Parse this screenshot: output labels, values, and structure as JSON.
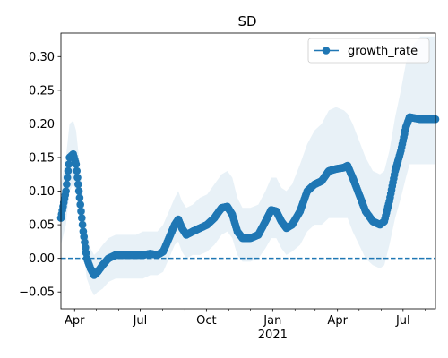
{
  "chart_data": {
    "type": "line",
    "title": "SD",
    "xlabel": "",
    "ylabel": "",
    "ylim": [
      -0.075,
      0.335
    ],
    "xlim": [
      "2020-03-13",
      "2021-08-15"
    ],
    "yticks": [
      -0.05,
      0.0,
      0.05,
      0.1,
      0.15,
      0.2,
      0.25,
      0.3
    ],
    "ytick_labels": [
      "−0.05",
      "0.00",
      "0.05",
      "0.10",
      "0.15",
      "0.20",
      "0.25",
      "0.30"
    ],
    "xticks": [
      {
        "date": "2020-04-01",
        "label": "Apr",
        "sub": ""
      },
      {
        "date": "2020-07-01",
        "label": "Jul",
        "sub": ""
      },
      {
        "date": "2020-10-01",
        "label": "Oct",
        "sub": ""
      },
      {
        "date": "2021-01-01",
        "label": "Jan",
        "sub": "2021"
      },
      {
        "date": "2021-04-01",
        "label": "Apr",
        "sub": ""
      },
      {
        "date": "2021-07-01",
        "label": "Jul",
        "sub": ""
      }
    ],
    "minor_ticks": [
      "2020-05-01",
      "2020-06-01",
      "2020-08-01",
      "2020-09-01",
      "2020-11-01",
      "2020-12-01",
      "2021-02-01",
      "2021-03-01",
      "2021-05-01",
      "2021-06-01",
      "2021-08-01"
    ],
    "grid": false,
    "legend_position": "top-right",
    "reference_line": {
      "y": 0.0,
      "style": "dashed"
    },
    "series": [
      {
        "name": "growth_rate",
        "color": "#1f77b4",
        "band_color": "#1f77b4",
        "points": [
          {
            "x": "2020-03-13",
            "y": 0.06,
            "lo": 0.02,
            "hi": 0.11
          },
          {
            "x": "2020-03-20",
            "y": 0.1,
            "lo": 0.05,
            "hi": 0.15
          },
          {
            "x": "2020-03-25",
            "y": 0.15,
            "lo": 0.1,
            "hi": 0.2
          },
          {
            "x": "2020-03-30",
            "y": 0.155,
            "lo": 0.11,
            "hi": 0.205
          },
          {
            "x": "2020-04-03",
            "y": 0.14,
            "lo": 0.1,
            "hi": 0.19
          },
          {
            "x": "2020-04-08",
            "y": 0.09,
            "lo": 0.06,
            "hi": 0.14
          },
          {
            "x": "2020-04-13",
            "y": 0.04,
            "lo": 0.01,
            "hi": 0.09
          },
          {
            "x": "2020-04-18",
            "y": 0.0,
            "lo": -0.03,
            "hi": 0.04
          },
          {
            "x": "2020-04-23",
            "y": -0.015,
            "lo": -0.045,
            "hi": 0.015
          },
          {
            "x": "2020-04-28",
            "y": -0.025,
            "lo": -0.055,
            "hi": 0.005
          },
          {
            "x": "2020-05-03",
            "y": -0.02,
            "lo": -0.05,
            "hi": 0.01
          },
          {
            "x": "2020-05-10",
            "y": -0.01,
            "lo": -0.045,
            "hi": 0.02
          },
          {
            "x": "2020-05-18",
            "y": 0.0,
            "lo": -0.035,
            "hi": 0.03
          },
          {
            "x": "2020-05-28",
            "y": 0.005,
            "lo": -0.03,
            "hi": 0.035
          },
          {
            "x": "2020-06-10",
            "y": 0.005,
            "lo": -0.03,
            "hi": 0.035
          },
          {
            "x": "2020-06-25",
            "y": 0.005,
            "lo": -0.03,
            "hi": 0.035
          },
          {
            "x": "2020-07-05",
            "y": 0.005,
            "lo": -0.03,
            "hi": 0.04
          },
          {
            "x": "2020-07-15",
            "y": 0.007,
            "lo": -0.025,
            "hi": 0.04
          },
          {
            "x": "2020-07-25",
            "y": 0.005,
            "lo": -0.025,
            "hi": 0.04
          },
          {
            "x": "2020-08-02",
            "y": 0.01,
            "lo": -0.02,
            "hi": 0.05
          },
          {
            "x": "2020-08-10",
            "y": 0.03,
            "lo": 0.0,
            "hi": 0.07
          },
          {
            "x": "2020-08-18",
            "y": 0.05,
            "lo": 0.02,
            "hi": 0.09
          },
          {
            "x": "2020-08-23",
            "y": 0.058,
            "lo": 0.025,
            "hi": 0.1
          },
          {
            "x": "2020-08-28",
            "y": 0.045,
            "lo": 0.01,
            "hi": 0.085
          },
          {
            "x": "2020-09-03",
            "y": 0.035,
            "lo": 0.0,
            "hi": 0.075
          },
          {
            "x": "2020-09-12",
            "y": 0.04,
            "lo": 0.005,
            "hi": 0.08
          },
          {
            "x": "2020-09-22",
            "y": 0.045,
            "lo": 0.005,
            "hi": 0.09
          },
          {
            "x": "2020-10-02",
            "y": 0.05,
            "lo": 0.01,
            "hi": 0.095
          },
          {
            "x": "2020-10-12",
            "y": 0.06,
            "lo": 0.02,
            "hi": 0.11
          },
          {
            "x": "2020-10-22",
            "y": 0.075,
            "lo": 0.035,
            "hi": 0.125
          },
          {
            "x": "2020-10-30",
            "y": 0.077,
            "lo": 0.04,
            "hi": 0.13
          },
          {
            "x": "2020-11-06",
            "y": 0.065,
            "lo": 0.03,
            "hi": 0.12
          },
          {
            "x": "2020-11-13",
            "y": 0.04,
            "lo": 0.005,
            "hi": 0.09
          },
          {
            "x": "2020-11-20",
            "y": 0.03,
            "lo": -0.005,
            "hi": 0.075
          },
          {
            "x": "2020-12-01",
            "y": 0.03,
            "lo": -0.005,
            "hi": 0.075
          },
          {
            "x": "2020-12-12",
            "y": 0.035,
            "lo": 0.0,
            "hi": 0.08
          },
          {
            "x": "2020-12-22",
            "y": 0.055,
            "lo": 0.015,
            "hi": 0.1
          },
          {
            "x": "2020-12-30",
            "y": 0.072,
            "lo": 0.03,
            "hi": 0.12
          },
          {
            "x": "2021-01-06",
            "y": 0.07,
            "lo": 0.03,
            "hi": 0.12
          },
          {
            "x": "2021-01-13",
            "y": 0.055,
            "lo": 0.015,
            "hi": 0.105
          },
          {
            "x": "2021-01-20",
            "y": 0.045,
            "lo": 0.005,
            "hi": 0.1
          },
          {
            "x": "2021-01-28",
            "y": 0.05,
            "lo": 0.01,
            "hi": 0.11
          },
          {
            "x": "2021-02-08",
            "y": 0.07,
            "lo": 0.02,
            "hi": 0.14
          },
          {
            "x": "2021-02-18",
            "y": 0.1,
            "lo": 0.04,
            "hi": 0.17
          },
          {
            "x": "2021-02-28",
            "y": 0.11,
            "lo": 0.05,
            "hi": 0.19
          },
          {
            "x": "2021-03-10",
            "y": 0.115,
            "lo": 0.05,
            "hi": 0.2
          },
          {
            "x": "2021-03-20",
            "y": 0.13,
            "lo": 0.06,
            "hi": 0.22
          },
          {
            "x": "2021-03-30",
            "y": 0.133,
            "lo": 0.06,
            "hi": 0.225
          },
          {
            "x": "2021-04-10",
            "y": 0.135,
            "lo": 0.06,
            "hi": 0.22
          },
          {
            "x": "2021-04-15",
            "y": 0.138,
            "lo": 0.06,
            "hi": 0.215
          },
          {
            "x": "2021-04-22",
            "y": 0.12,
            "lo": 0.04,
            "hi": 0.2
          },
          {
            "x": "2021-05-01",
            "y": 0.095,
            "lo": 0.02,
            "hi": 0.175
          },
          {
            "x": "2021-05-10",
            "y": 0.07,
            "lo": 0.0,
            "hi": 0.15
          },
          {
            "x": "2021-05-20",
            "y": 0.055,
            "lo": -0.01,
            "hi": 0.13
          },
          {
            "x": "2021-05-30",
            "y": 0.05,
            "lo": -0.015,
            "hi": 0.125
          },
          {
            "x": "2021-06-05",
            "y": 0.055,
            "lo": -0.01,
            "hi": 0.13
          },
          {
            "x": "2021-06-12",
            "y": 0.085,
            "lo": 0.02,
            "hi": 0.16
          },
          {
            "x": "2021-06-20",
            "y": 0.13,
            "lo": 0.06,
            "hi": 0.21
          },
          {
            "x": "2021-06-28",
            "y": 0.16,
            "lo": 0.09,
            "hi": 0.25
          },
          {
            "x": "2021-07-05",
            "y": 0.195,
            "lo": 0.12,
            "hi": 0.29
          },
          {
            "x": "2021-07-10",
            "y": 0.21,
            "lo": 0.14,
            "hi": 0.31
          },
          {
            "x": "2021-07-25",
            "y": 0.207,
            "lo": 0.14,
            "hi": 0.33
          },
          {
            "x": "2021-08-15",
            "y": 0.207,
            "lo": 0.14,
            "hi": 0.33
          }
        ]
      }
    ]
  }
}
